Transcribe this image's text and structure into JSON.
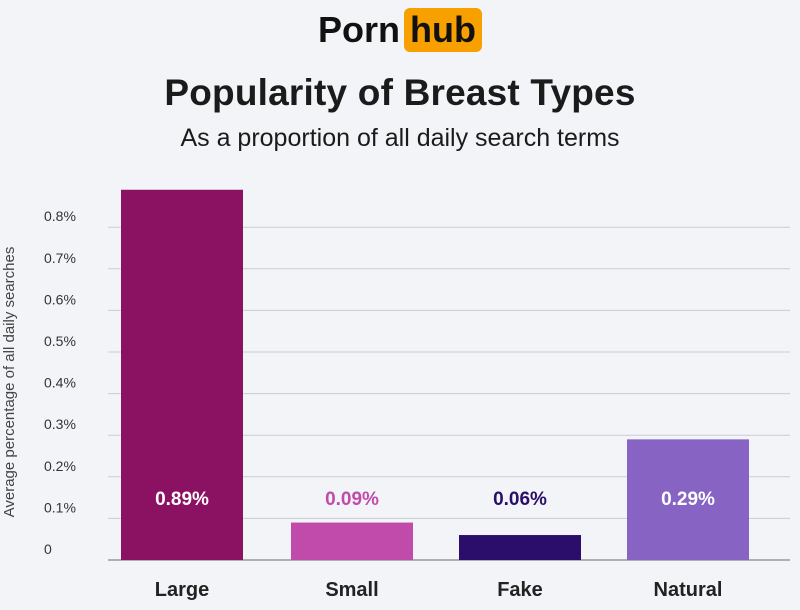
{
  "brand": {
    "part1": "Porn",
    "part2": "hub",
    "accent": "#f7a000"
  },
  "chart_data": {
    "type": "bar",
    "title": "Popularity of Breast Types",
    "subtitle": "As a proportion of all daily search terms",
    "ylabel": "Average percentage of all daily searches",
    "xlabel": "",
    "categories": [
      "Large",
      "Small",
      "Fake",
      "Natural"
    ],
    "values": [
      0.89,
      0.09,
      0.06,
      0.29
    ],
    "data_labels": [
      "0.89%",
      "0.09%",
      "0.06%",
      "0.29%"
    ],
    "colors": [
      "#8b1262",
      "#c04bab",
      "#2b0d6b",
      "#8763c4"
    ],
    "label_colors": [
      "#ffffff",
      "#c04bab",
      "#2b0d6b",
      "#ffffff"
    ],
    "ylim": [
      0,
      0.85
    ],
    "yticks": [
      0,
      0.1,
      0.2,
      0.3,
      0.4,
      0.5,
      0.6,
      0.7,
      0.8
    ],
    "ytick_labels": [
      "0",
      "0.1%",
      "0.2%",
      "0.3%",
      "0.4%",
      "0.5%",
      "0.6%",
      "0.7%",
      "0.8%"
    ],
    "grid": true,
    "legend": "none"
  }
}
